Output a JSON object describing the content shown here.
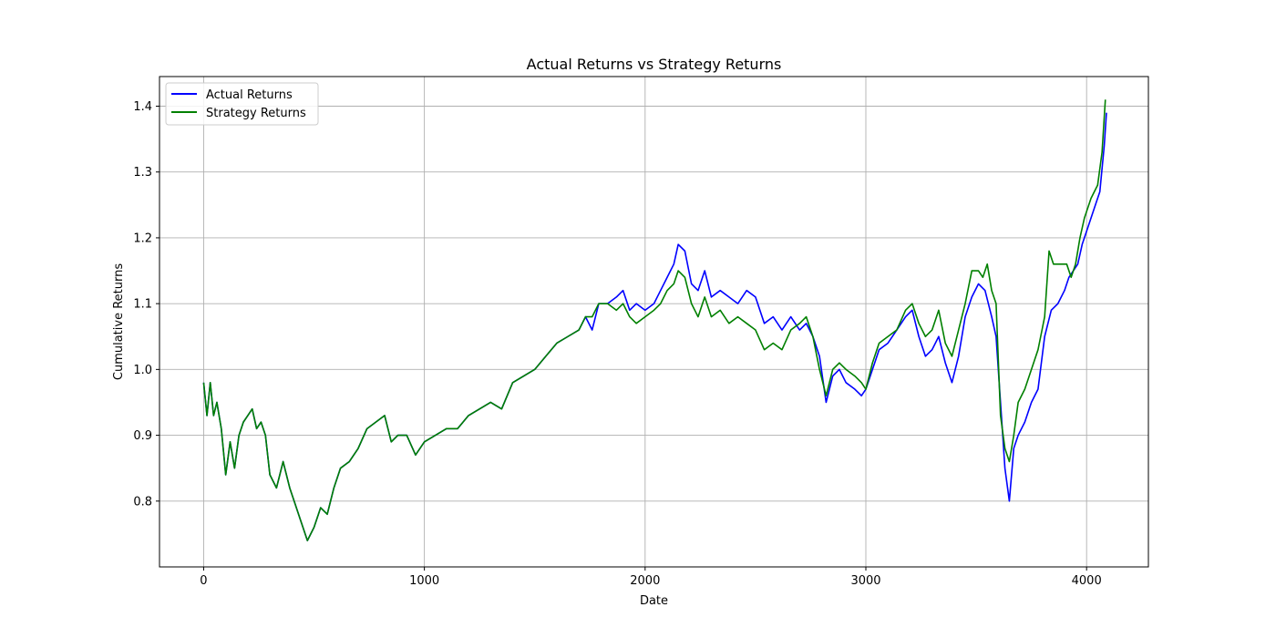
{
  "chart_data": {
    "type": "line",
    "title": "Actual Returns vs Strategy Returns",
    "xlabel": "Date",
    "ylabel": "Cumulative Returns",
    "xlim": [
      -200,
      4280
    ],
    "ylim": [
      0.7,
      1.445
    ],
    "xticks": [
      0,
      1000,
      2000,
      3000,
      4000
    ],
    "xtick_labels": [
      "0",
      "1000",
      "2000",
      "3000",
      "4000"
    ],
    "yticks": [
      0.8,
      0.9,
      1.0,
      1.1,
      1.2,
      1.3,
      1.4
    ],
    "ytick_labels": [
      "0.8",
      "0.9",
      "1.0",
      "1.1",
      "1.2",
      "1.3",
      "1.4"
    ],
    "grid": true,
    "legend_position": "upper-left",
    "series": [
      {
        "name": "Actual Returns",
        "color": "#0000ff",
        "points": [
          [
            0,
            0.98
          ],
          [
            15,
            0.93
          ],
          [
            30,
            0.98
          ],
          [
            45,
            0.93
          ],
          [
            60,
            0.95
          ],
          [
            80,
            0.91
          ],
          [
            100,
            0.84
          ],
          [
            120,
            0.89
          ],
          [
            140,
            0.85
          ],
          [
            160,
            0.9
          ],
          [
            180,
            0.92
          ],
          [
            200,
            0.93
          ],
          [
            220,
            0.94
          ],
          [
            240,
            0.91
          ],
          [
            260,
            0.92
          ],
          [
            280,
            0.9
          ],
          [
            300,
            0.84
          ],
          [
            330,
            0.82
          ],
          [
            360,
            0.86
          ],
          [
            390,
            0.82
          ],
          [
            410,
            0.8
          ],
          [
            440,
            0.77
          ],
          [
            470,
            0.74
          ],
          [
            500,
            0.76
          ],
          [
            530,
            0.79
          ],
          [
            560,
            0.78
          ],
          [
            590,
            0.82
          ],
          [
            620,
            0.85
          ],
          [
            660,
            0.86
          ],
          [
            700,
            0.88
          ],
          [
            740,
            0.91
          ],
          [
            780,
            0.92
          ],
          [
            820,
            0.93
          ],
          [
            850,
            0.89
          ],
          [
            880,
            0.9
          ],
          [
            920,
            0.9
          ],
          [
            960,
            0.87
          ],
          [
            1000,
            0.89
          ],
          [
            1050,
            0.9
          ],
          [
            1100,
            0.91
          ],
          [
            1150,
            0.91
          ],
          [
            1200,
            0.93
          ],
          [
            1250,
            0.94
          ],
          [
            1300,
            0.95
          ],
          [
            1350,
            0.94
          ],
          [
            1400,
            0.98
          ],
          [
            1450,
            0.99
          ],
          [
            1500,
            1.0
          ],
          [
            1550,
            1.02
          ],
          [
            1600,
            1.04
          ],
          [
            1650,
            1.05
          ],
          [
            1700,
            1.06
          ],
          [
            1730,
            1.08
          ],
          [
            1760,
            1.06
          ],
          [
            1790,
            1.1
          ],
          [
            1830,
            1.1
          ],
          [
            1870,
            1.11
          ],
          [
            1900,
            1.12
          ],
          [
            1930,
            1.09
          ],
          [
            1960,
            1.1
          ],
          [
            2000,
            1.09
          ],
          [
            2040,
            1.1
          ],
          [
            2070,
            1.12
          ],
          [
            2100,
            1.14
          ],
          [
            2130,
            1.16
          ],
          [
            2150,
            1.19
          ],
          [
            2180,
            1.18
          ],
          [
            2210,
            1.13
          ],
          [
            2240,
            1.12
          ],
          [
            2270,
            1.15
          ],
          [
            2300,
            1.11
          ],
          [
            2340,
            1.12
          ],
          [
            2380,
            1.11
          ],
          [
            2420,
            1.1
          ],
          [
            2460,
            1.12
          ],
          [
            2500,
            1.11
          ],
          [
            2540,
            1.07
          ],
          [
            2580,
            1.08
          ],
          [
            2620,
            1.06
          ],
          [
            2660,
            1.08
          ],
          [
            2700,
            1.06
          ],
          [
            2730,
            1.07
          ],
          [
            2760,
            1.05
          ],
          [
            2790,
            1.02
          ],
          [
            2820,
            0.95
          ],
          [
            2850,
            0.99
          ],
          [
            2880,
            1.0
          ],
          [
            2910,
            0.98
          ],
          [
            2950,
            0.97
          ],
          [
            2980,
            0.96
          ],
          [
            3000,
            0.97
          ],
          [
            3030,
            1.0
          ],
          [
            3060,
            1.03
          ],
          [
            3100,
            1.04
          ],
          [
            3140,
            1.06
          ],
          [
            3180,
            1.08
          ],
          [
            3210,
            1.09
          ],
          [
            3240,
            1.05
          ],
          [
            3270,
            1.02
          ],
          [
            3300,
            1.03
          ],
          [
            3330,
            1.05
          ],
          [
            3360,
            1.01
          ],
          [
            3390,
            0.98
          ],
          [
            3420,
            1.02
          ],
          [
            3450,
            1.08
          ],
          [
            3480,
            1.11
          ],
          [
            3510,
            1.13
          ],
          [
            3540,
            1.12
          ],
          [
            3570,
            1.08
          ],
          [
            3590,
            1.05
          ],
          [
            3610,
            0.95
          ],
          [
            3630,
            0.85
          ],
          [
            3650,
            0.8
          ],
          [
            3670,
            0.88
          ],
          [
            3690,
            0.9
          ],
          [
            3720,
            0.92
          ],
          [
            3750,
            0.95
          ],
          [
            3780,
            0.97
          ],
          [
            3810,
            1.05
          ],
          [
            3840,
            1.09
          ],
          [
            3870,
            1.1
          ],
          [
            3900,
            1.12
          ],
          [
            3920,
            1.14
          ],
          [
            3940,
            1.15
          ],
          [
            3960,
            1.16
          ],
          [
            3980,
            1.19
          ],
          [
            4000,
            1.21
          ],
          [
            4030,
            1.24
          ],
          [
            4060,
            1.27
          ],
          [
            4080,
            1.34
          ],
          [
            4090,
            1.39
          ]
        ]
      },
      {
        "name": "Strategy Returns",
        "color": "#008000",
        "points": [
          [
            0,
            0.98
          ],
          [
            15,
            0.93
          ],
          [
            30,
            0.98
          ],
          [
            45,
            0.93
          ],
          [
            60,
            0.95
          ],
          [
            80,
            0.91
          ],
          [
            100,
            0.84
          ],
          [
            120,
            0.89
          ],
          [
            140,
            0.85
          ],
          [
            160,
            0.9
          ],
          [
            180,
            0.92
          ],
          [
            200,
            0.93
          ],
          [
            220,
            0.94
          ],
          [
            240,
            0.91
          ],
          [
            260,
            0.92
          ],
          [
            280,
            0.9
          ],
          [
            300,
            0.84
          ],
          [
            330,
            0.82
          ],
          [
            360,
            0.86
          ],
          [
            390,
            0.82
          ],
          [
            410,
            0.8
          ],
          [
            440,
            0.77
          ],
          [
            470,
            0.74
          ],
          [
            500,
            0.76
          ],
          [
            530,
            0.79
          ],
          [
            560,
            0.78
          ],
          [
            590,
            0.82
          ],
          [
            620,
            0.85
          ],
          [
            660,
            0.86
          ],
          [
            700,
            0.88
          ],
          [
            740,
            0.91
          ],
          [
            780,
            0.92
          ],
          [
            820,
            0.93
          ],
          [
            850,
            0.89
          ],
          [
            880,
            0.9
          ],
          [
            920,
            0.9
          ],
          [
            960,
            0.87
          ],
          [
            1000,
            0.89
          ],
          [
            1050,
            0.9
          ],
          [
            1100,
            0.91
          ],
          [
            1150,
            0.91
          ],
          [
            1200,
            0.93
          ],
          [
            1250,
            0.94
          ],
          [
            1300,
            0.95
          ],
          [
            1350,
            0.94
          ],
          [
            1400,
            0.98
          ],
          [
            1450,
            0.99
          ],
          [
            1500,
            1.0
          ],
          [
            1550,
            1.02
          ],
          [
            1600,
            1.04
          ],
          [
            1650,
            1.05
          ],
          [
            1700,
            1.06
          ],
          [
            1730,
            1.08
          ],
          [
            1760,
            1.08
          ],
          [
            1790,
            1.1
          ],
          [
            1830,
            1.1
          ],
          [
            1870,
            1.09
          ],
          [
            1900,
            1.1
          ],
          [
            1930,
            1.08
          ],
          [
            1960,
            1.07
          ],
          [
            2000,
            1.08
          ],
          [
            2040,
            1.09
          ],
          [
            2070,
            1.1
          ],
          [
            2100,
            1.12
          ],
          [
            2130,
            1.13
          ],
          [
            2150,
            1.15
          ],
          [
            2180,
            1.14
          ],
          [
            2210,
            1.1
          ],
          [
            2240,
            1.08
          ],
          [
            2270,
            1.11
          ],
          [
            2300,
            1.08
          ],
          [
            2340,
            1.09
          ],
          [
            2380,
            1.07
          ],
          [
            2420,
            1.08
          ],
          [
            2460,
            1.07
          ],
          [
            2500,
            1.06
          ],
          [
            2540,
            1.03
          ],
          [
            2580,
            1.04
          ],
          [
            2620,
            1.03
          ],
          [
            2660,
            1.06
          ],
          [
            2700,
            1.07
          ],
          [
            2730,
            1.08
          ],
          [
            2760,
            1.05
          ],
          [
            2790,
            1.0
          ],
          [
            2820,
            0.96
          ],
          [
            2850,
            1.0
          ],
          [
            2880,
            1.01
          ],
          [
            2910,
            1.0
          ],
          [
            2950,
            0.99
          ],
          [
            2980,
            0.98
          ],
          [
            3000,
            0.97
          ],
          [
            3030,
            1.01
          ],
          [
            3060,
            1.04
          ],
          [
            3100,
            1.05
          ],
          [
            3140,
            1.06
          ],
          [
            3180,
            1.09
          ],
          [
            3210,
            1.1
          ],
          [
            3240,
            1.07
          ],
          [
            3270,
            1.05
          ],
          [
            3300,
            1.06
          ],
          [
            3330,
            1.09
          ],
          [
            3360,
            1.04
          ],
          [
            3390,
            1.02
          ],
          [
            3420,
            1.06
          ],
          [
            3450,
            1.1
          ],
          [
            3480,
            1.15
          ],
          [
            3510,
            1.15
          ],
          [
            3530,
            1.14
          ],
          [
            3550,
            1.16
          ],
          [
            3570,
            1.12
          ],
          [
            3590,
            1.1
          ],
          [
            3610,
            0.93
          ],
          [
            3630,
            0.88
          ],
          [
            3650,
            0.86
          ],
          [
            3670,
            0.9
          ],
          [
            3690,
            0.95
          ],
          [
            3720,
            0.97
          ],
          [
            3750,
            1.0
          ],
          [
            3780,
            1.03
          ],
          [
            3810,
            1.08
          ],
          [
            3830,
            1.18
          ],
          [
            3850,
            1.16
          ],
          [
            3880,
            1.16
          ],
          [
            3910,
            1.16
          ],
          [
            3930,
            1.14
          ],
          [
            3950,
            1.16
          ],
          [
            3970,
            1.2
          ],
          [
            3990,
            1.23
          ],
          [
            4020,
            1.26
          ],
          [
            4050,
            1.28
          ],
          [
            4070,
            1.33
          ],
          [
            4085,
            1.41
          ]
        ]
      }
    ]
  }
}
